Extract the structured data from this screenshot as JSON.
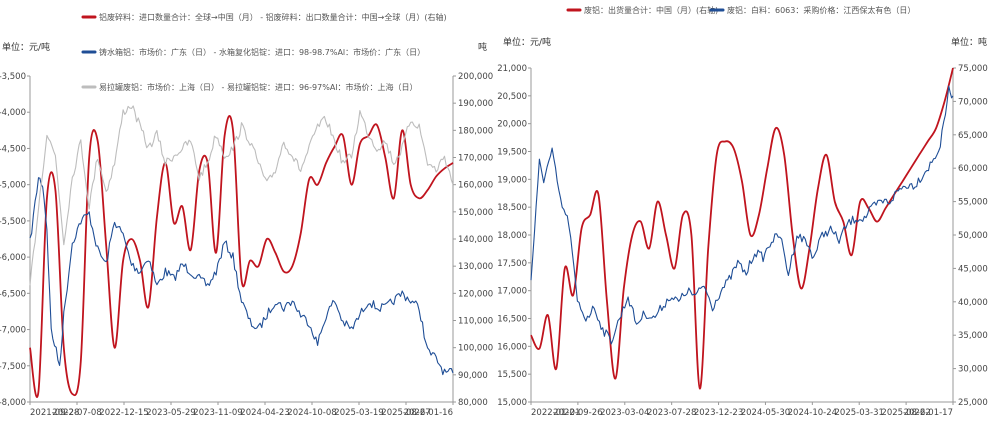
{
  "chart_data": [
    {
      "id": "left",
      "type": "line",
      "ylabel_left": "单位：元/吨",
      "ylabel_right": "吨",
      "ylim_left": [
        -8000,
        -3500
      ],
      "ylim_right": [
        80000,
        200000
      ],
      "yticks_left": [
        "-3,500",
        "-4,000",
        "-4,500",
        "-5,000",
        "-5,500",
        "-6,000",
        "-6,500",
        "-7,000",
        "-7,500",
        "-8,000"
      ],
      "yticks_right": [
        "200,000",
        "190,000",
        "180,000",
        "170,000",
        "160,000",
        "150,000",
        "140,000",
        "130,000",
        "120,000",
        "110,000",
        "100,000",
        "90,000",
        "80,000"
      ],
      "xticks": [
        "2021-09-28",
        "2022-07-08",
        "2022-12-15",
        "2023-05-29",
        "2023-11-09",
        "2024-04-23",
        "2024-10-08",
        "2025-03-19",
        "2025-08-27",
        "2026-01-16"
      ],
      "legend": [
        "铝废碎料：进口数量合计：全球→中国（月） - 铝废碎料：出口数量合计：中国→全球（月）(右轴)",
        "铸水箱铝：市场价：广东（日） - 水箱复化铝锭：进口：98-98.7%Al：市场价：广东（日）",
        "易拉罐废铝：市场价：上海（日） - 易拉罐铝锭：进口：96-97%Al：市场价：上海（日）"
      ],
      "series": [
        {
          "name": "net_import_right",
          "color": "#c0141e",
          "axis": "right",
          "smooth": true,
          "x": [
            0.0,
            0.02,
            0.04,
            0.06,
            0.08,
            0.1,
            0.12,
            0.14,
            0.16,
            0.18,
            0.2,
            0.22,
            0.24,
            0.26,
            0.28,
            0.3,
            0.32,
            0.34,
            0.36,
            0.38,
            0.4,
            0.42,
            0.44,
            0.46,
            0.48,
            0.5,
            0.52,
            0.54,
            0.56,
            0.58,
            0.6,
            0.62,
            0.64,
            0.66,
            0.68,
            0.7,
            0.72,
            0.74,
            0.76,
            0.78,
            0.8,
            0.82,
            0.84,
            0.86,
            0.88,
            0.9,
            0.92,
            0.94,
            0.96,
            0.98,
            1.0
          ],
          "values": [
            100000,
            84000,
            155000,
            158000,
            100000,
            83000,
            95000,
            170000,
            176000,
            138000,
            100000,
            132000,
            140000,
            132000,
            115000,
            148000,
            168000,
            146000,
            152000,
            136000,
            165000,
            168000,
            135000,
            178000,
            180000,
            125000,
            132000,
            130000,
            140000,
            135000,
            128000,
            130000,
            142000,
            162000,
            160000,
            168000,
            174000,
            178000,
            160000,
            175000,
            178000,
            182000,
            170000,
            155000,
            180000,
            160000,
            155000,
            158000,
            163000,
            166000,
            168000
          ]
        },
        {
          "name": "water_tank_spread",
          "color": "#1f4e96",
          "axis": "left",
          "noisy": true,
          "x": [
            0.0,
            0.02,
            0.03,
            0.04,
            0.05,
            0.07,
            0.08,
            0.1,
            0.12,
            0.14,
            0.16,
            0.18,
            0.2,
            0.22,
            0.24,
            0.26,
            0.28,
            0.3,
            0.32,
            0.34,
            0.36,
            0.38,
            0.4,
            0.42,
            0.44,
            0.46,
            0.48,
            0.5,
            0.52,
            0.54,
            0.56,
            0.58,
            0.6,
            0.62,
            0.64,
            0.66,
            0.68,
            0.7,
            0.72,
            0.74,
            0.76,
            0.78,
            0.8,
            0.82,
            0.84,
            0.86,
            0.88,
            0.9,
            0.92,
            0.94,
            0.96,
            0.98,
            1.0
          ],
          "values": [
            -5800,
            -4900,
            -5000,
            -5600,
            -7000,
            -7500,
            -6800,
            -5800,
            -5500,
            -5400,
            -5900,
            -6100,
            -5500,
            -5700,
            -6100,
            -6200,
            -6000,
            -6400,
            -6200,
            -6300,
            -6100,
            -6200,
            -6300,
            -6400,
            -6200,
            -5800,
            -6000,
            -6600,
            -6900,
            -7000,
            -6800,
            -6600,
            -6700,
            -6600,
            -6800,
            -6900,
            -7200,
            -6800,
            -6600,
            -6900,
            -7000,
            -6800,
            -6600,
            -6700,
            -6700,
            -6600,
            -6500,
            -6600,
            -6700,
            -7300,
            -7400,
            -7600,
            -7600
          ]
        },
        {
          "name": "can_scrap_spread",
          "color": "#bdbdbd",
          "axis": "left",
          "noisy": true,
          "x": [
            0.0,
            0.02,
            0.04,
            0.06,
            0.08,
            0.1,
            0.12,
            0.14,
            0.16,
            0.18,
            0.2,
            0.22,
            0.24,
            0.26,
            0.28,
            0.3,
            0.32,
            0.34,
            0.36,
            0.38,
            0.4,
            0.42,
            0.44,
            0.46,
            0.48,
            0.5,
            0.52,
            0.54,
            0.56,
            0.58,
            0.6,
            0.62,
            0.64,
            0.66,
            0.68,
            0.7,
            0.72,
            0.74,
            0.76,
            0.78,
            0.8,
            0.82,
            0.84,
            0.86,
            0.88,
            0.9,
            0.92,
            0.94,
            0.96,
            0.98,
            1.0
          ],
          "values": [
            -6400,
            -5300,
            -4300,
            -4600,
            -5800,
            -4900,
            -4400,
            -5300,
            -4600,
            -5100,
            -4700,
            -4000,
            -3900,
            -4200,
            -4500,
            -4300,
            -4700,
            -4600,
            -4500,
            -4400,
            -4900,
            -4700,
            -4300,
            -4600,
            -4500,
            -4200,
            -4400,
            -4700,
            -5000,
            -4800,
            -4400,
            -4600,
            -4800,
            -4500,
            -4200,
            -4100,
            -4400,
            -4700,
            -4600,
            -4000,
            -4300,
            -4500,
            -4400,
            -4700,
            -4500,
            -4100,
            -4200,
            -4700,
            -4800,
            -4600,
            -5000
          ]
        }
      ]
    },
    {
      "id": "right",
      "type": "line",
      "ylabel_left": "单位：元/吨",
      "ylabel_right": "单位：吨",
      "ylim_left": [
        15000,
        21000
      ],
      "ylim_right": [
        25000,
        75000
      ],
      "yticks_left": [
        "21,000",
        "20,500",
        "20,000",
        "19,500",
        "19,000",
        "18,500",
        "18,000",
        "17,500",
        "17,000",
        "16,500",
        "16,000",
        "15,500",
        "15,000"
      ],
      "yticks_right": [
        "75,000",
        "70,000",
        "65,000",
        "60,000",
        "55,000",
        "50,000",
        "45,000",
        "40,000",
        "35,000",
        "30,000",
        "25,000"
      ],
      "xticks": [
        "2022-01-01",
        "2022-09-26",
        "2023-03-04",
        "2023-07-28",
        "2023-12-23",
        "2024-05-30",
        "2024-10-24",
        "2025-03-31",
        "2025-08-22",
        "2026-01-17"
      ],
      "legend": [
        "废铝：出货量合计：中国（月）(右轴)",
        "废铝：白料：6063：采购价格：江西保太有色（日）"
      ],
      "series": [
        {
          "name": "shipment_right",
          "color": "#c0141e",
          "axis": "right",
          "smooth": true,
          "x": [
            0.0,
            0.02,
            0.04,
            0.06,
            0.08,
            0.1,
            0.12,
            0.14,
            0.16,
            0.18,
            0.2,
            0.22,
            0.24,
            0.26,
            0.28,
            0.3,
            0.32,
            0.34,
            0.36,
            0.38,
            0.4,
            0.42,
            0.44,
            0.46,
            0.48,
            0.5,
            0.52,
            0.54,
            0.56,
            0.58,
            0.6,
            0.62,
            0.64,
            0.66,
            0.68,
            0.7,
            0.72,
            0.74,
            0.76,
            0.78,
            0.8,
            0.82,
            0.84,
            0.86,
            0.88,
            0.9,
            0.92,
            0.94,
            0.96,
            0.98,
            1.0
          ],
          "values": [
            35000,
            33000,
            38000,
            30000,
            45000,
            41000,
            51000,
            53000,
            56000,
            40000,
            28500,
            42000,
            50000,
            52000,
            48000,
            55000,
            50000,
            45000,
            53000,
            50000,
            27000,
            48000,
            62000,
            64000,
            63000,
            58000,
            50000,
            53000,
            60000,
            66000,
            62000,
            50000,
            42000,
            48000,
            57000,
            62000,
            55000,
            52000,
            47000,
            55000,
            54000,
            52000,
            54000,
            56000,
            58000,
            60000,
            62000,
            64000,
            66000,
            70000,
            75000
          ]
        },
        {
          "name": "scrap_6063_price",
          "color": "#1f4e96",
          "axis": "left",
          "noisy": true,
          "x": [
            0.0,
            0.02,
            0.03,
            0.05,
            0.07,
            0.09,
            0.11,
            0.13,
            0.15,
            0.17,
            0.19,
            0.21,
            0.23,
            0.25,
            0.27,
            0.29,
            0.31,
            0.33,
            0.35,
            0.37,
            0.39,
            0.41,
            0.43,
            0.45,
            0.47,
            0.49,
            0.51,
            0.53,
            0.55,
            0.57,
            0.59,
            0.61,
            0.63,
            0.65,
            0.67,
            0.69,
            0.71,
            0.73,
            0.75,
            0.77,
            0.79,
            0.81,
            0.83,
            0.85,
            0.87,
            0.89,
            0.91,
            0.93,
            0.95,
            0.97,
            0.99,
            1.0
          ],
          "values": [
            17200,
            19300,
            19000,
            19500,
            18600,
            18200,
            16800,
            16500,
            16700,
            16300,
            16100,
            16500,
            16900,
            16400,
            16600,
            16500,
            16700,
            16900,
            16800,
            17000,
            16900,
            17100,
            16700,
            17000,
            17200,
            17500,
            17300,
            17700,
            17600,
            17900,
            18000,
            17300,
            18000,
            17900,
            17600,
            18000,
            18100,
            17900,
            18200,
            18300,
            18300,
            18500,
            18600,
            18600,
            18800,
            18900,
            18900,
            19100,
            19300,
            19600,
            20600,
            20500
          ]
        }
      ]
    }
  ]
}
